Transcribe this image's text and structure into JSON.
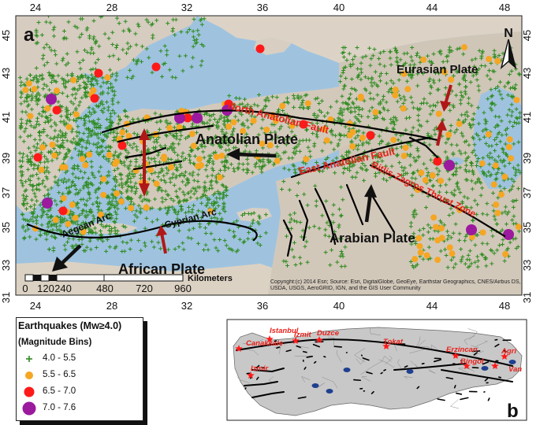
{
  "panel_a": {
    "label": "a",
    "lon_ticks": [
      "24",
      "28",
      "32",
      "36",
      "40",
      "44",
      "48"
    ],
    "lat_ticks": [
      "45",
      "43",
      "41",
      "39",
      "37",
      "35",
      "33",
      "31"
    ],
    "north_label": "N",
    "labels": {
      "eurasian": "Eurasian Plate",
      "anatolian": "Anatolian Plate",
      "arabian": "Arabian Plate",
      "african": "African Plate",
      "aegean_arc": "Aegean Arc",
      "cyprian_arc": "Cyprian Arc",
      "north_fault": "North Anatolian Fault",
      "east_fault": "East Anatolian Fault",
      "bitlis": "Bitlis-Zagros Thrust Zone"
    },
    "scale": {
      "ticks": [
        "0",
        "120",
        "240",
        "480",
        "720",
        "960"
      ],
      "unit": "Kilometers"
    },
    "copyright": "Copyright:(c) 2014 Esri;   Source: Esri, DigitalGlobe, GeoEye, Earthstar Geographics, CNES/Airbus DS, USDA, USGS, AeroGRID, IGN, and the GIS User Community"
  },
  "legend": {
    "title": "Earthquakes (Mw≥4.0)",
    "subtitle": "(Magnitude Bins)",
    "items": [
      {
        "label": "4.0 - 5.5",
        "color": "#2e8b1f",
        "symbol": "plus"
      },
      {
        "label": "5.5 - 6.5",
        "color": "#f5a623",
        "symbol": "circle"
      },
      {
        "label": "6.5 - 7.0",
        "color": "#ff1a1a",
        "symbol": "circle"
      },
      {
        "label": "7.0 - 7.6",
        "color": "#9b1a9e",
        "symbol": "circle"
      }
    ]
  },
  "panel_b": {
    "label": "b",
    "cities": [
      "Istanbul",
      "Izmit",
      "Duzce",
      "Canakkale",
      "Tokat",
      "Erzincan",
      "Agri",
      "Bingol",
      "Van",
      "Izmir"
    ]
  }
}
